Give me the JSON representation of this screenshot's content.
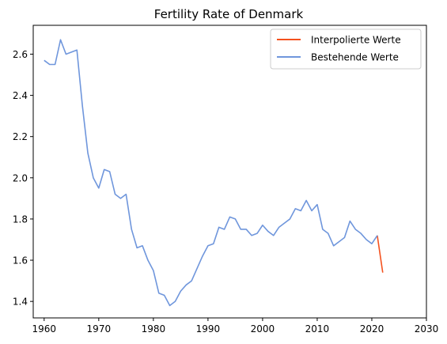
{
  "chart_data": {
    "type": "line",
    "title": "Fertility Rate of Denmark",
    "xlabel": "",
    "ylabel": "",
    "xlim": [
      1958,
      2030
    ],
    "ylim": [
      1.32,
      2.74
    ],
    "xticks": [
      1960,
      1970,
      1980,
      1990,
      2000,
      2010,
      2020,
      2030
    ],
    "yticks": [
      1.4,
      1.6,
      1.8,
      2.0,
      2.2,
      2.4,
      2.6
    ],
    "ytick_labels": [
      "1.4",
      "1.6",
      "1.8",
      "2.0",
      "2.2",
      "2.4",
      "2.6"
    ],
    "grid": false,
    "legend_position": "top-right",
    "series": [
      {
        "name": "Interpolierte Werte",
        "color": "#f4511e",
        "x": [
          2021,
          2022
        ],
        "values": [
          1.72,
          1.54
        ]
      },
      {
        "name": "Bestehende Werte",
        "color": "#6f96dc",
        "x": [
          1960,
          1961,
          1962,
          1963,
          1964,
          1965,
          1966,
          1967,
          1968,
          1969,
          1970,
          1971,
          1972,
          1973,
          1974,
          1975,
          1976,
          1977,
          1978,
          1979,
          1980,
          1981,
          1982,
          1983,
          1984,
          1985,
          1986,
          1987,
          1988,
          1989,
          1990,
          1991,
          1992,
          1993,
          1994,
          1995,
          1996,
          1997,
          1998,
          1999,
          2000,
          2001,
          2002,
          2003,
          2004,
          2005,
          2006,
          2007,
          2008,
          2009,
          2010,
          2011,
          2012,
          2013,
          2014,
          2015,
          2016,
          2017,
          2018,
          2019,
          2020,
          2021
        ],
        "values": [
          2.57,
          2.55,
          2.55,
          2.67,
          2.6,
          2.61,
          2.62,
          2.35,
          2.12,
          2.0,
          1.95,
          2.04,
          2.03,
          1.92,
          1.9,
          1.92,
          1.75,
          1.66,
          1.67,
          1.6,
          1.55,
          1.44,
          1.43,
          1.38,
          1.4,
          1.45,
          1.48,
          1.5,
          1.56,
          1.62,
          1.67,
          1.68,
          1.76,
          1.75,
          1.81,
          1.8,
          1.75,
          1.75,
          1.72,
          1.73,
          1.77,
          1.74,
          1.72,
          1.76,
          1.78,
          1.8,
          1.85,
          1.84,
          1.89,
          1.84,
          1.87,
          1.75,
          1.73,
          1.67,
          1.69,
          1.71,
          1.79,
          1.75,
          1.73,
          1.7,
          1.68,
          1.72
        ]
      }
    ]
  }
}
